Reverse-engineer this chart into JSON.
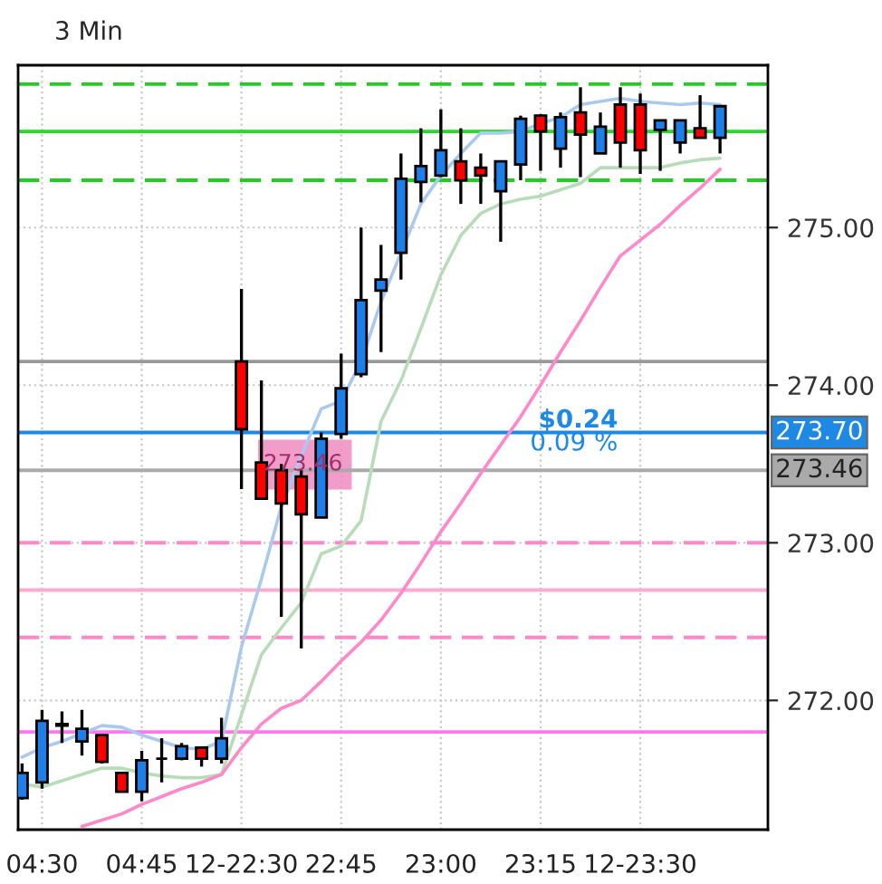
{
  "chart_data": {
    "type": "candlestick",
    "title": "3 Min",
    "categories": [
      null,
      "04:30",
      null,
      null,
      null,
      null,
      "04:45",
      null,
      null,
      null,
      null,
      "12-22:30",
      null,
      null,
      null,
      null,
      "22:45",
      null,
      null,
      null,
      null,
      "23:00",
      null,
      null,
      null,
      null,
      "23:15",
      null,
      null,
      null,
      null,
      "12-23:30",
      null,
      null,
      null,
      null
    ],
    "ohlc": [
      [
        271.38,
        271.6,
        271.37,
        271.54
      ],
      [
        271.48,
        271.94,
        271.44,
        271.87
      ],
      [
        271.85,
        271.93,
        271.73,
        271.84
      ],
      [
        271.74,
        271.94,
        271.65,
        271.82
      ],
      [
        271.78,
        271.78,
        271.6,
        271.61
      ],
      [
        271.54,
        271.54,
        271.42,
        271.42
      ],
      [
        271.42,
        271.68,
        271.36,
        271.62
      ],
      [
        271.63,
        271.76,
        271.48,
        271.63
      ],
      [
        271.63,
        271.73,
        271.62,
        271.71
      ],
      [
        271.7,
        271.7,
        271.58,
        271.63
      ],
      [
        271.63,
        271.89,
        271.6,
        271.76
      ],
      [
        274.15,
        274.61,
        273.34,
        273.72
      ],
      [
        273.51,
        274.03,
        273.28,
        273.28
      ],
      [
        273.46,
        273.5,
        272.53,
        273.25
      ],
      [
        273.42,
        273.46,
        272.33,
        273.18
      ],
      [
        273.16,
        273.7,
        273.16,
        273.66
      ],
      [
        273.69,
        274.2,
        273.66,
        273.98
      ],
      [
        274.07,
        275.0,
        274.05,
        274.54
      ],
      [
        274.6,
        274.89,
        274.21,
        274.67
      ],
      [
        274.84,
        275.47,
        274.67,
        275.31
      ],
      [
        275.29,
        275.63,
        275.16,
        275.39
      ],
      [
        275.33,
        275.75,
        275.32,
        275.49
      ],
      [
        275.42,
        275.63,
        275.15,
        275.3
      ],
      [
        275.38,
        275.47,
        275.15,
        275.33
      ],
      [
        275.23,
        275.42,
        274.91,
        275.42
      ],
      [
        275.4,
        275.71,
        275.3,
        275.69
      ],
      [
        275.71,
        275.72,
        275.36,
        275.61
      ],
      [
        275.5,
        275.73,
        275.38,
        275.7
      ],
      [
        275.73,
        275.89,
        275.32,
        275.59
      ],
      [
        275.47,
        275.73,
        275.47,
        275.64
      ],
      [
        275.78,
        275.89,
        275.38,
        275.54
      ],
      [
        275.78,
        275.85,
        275.34,
        275.49
      ],
      [
        275.62,
        275.68,
        275.36,
        275.68
      ],
      [
        275.54,
        275.68,
        275.47,
        275.68
      ],
      [
        275.63,
        275.84,
        275.57,
        275.57
      ],
      [
        275.57,
        275.77,
        275.47,
        275.77
      ]
    ],
    "colors": [
      "#1e7fe8",
      "#1e7fe8",
      "#ff0000",
      "#1e7fe8",
      "#ff0000",
      "#ff0000",
      "#1e7fe8",
      "#000000",
      "#1e7fe8",
      "#ff0000",
      "#1e7fe8",
      "#ff0000",
      "#ff0000",
      "#ff0000",
      "#ff0000",
      "#1e7fe8",
      "#1e7fe8",
      "#1e7fe8",
      "#1e7fe8",
      "#1e7fe8",
      "#1e7fe8",
      "#1e7fe8",
      "#ff0000",
      "#ff0000",
      "#1e7fe8",
      "#1e7fe8",
      "#ff0000",
      "#1e7fe8",
      "#ff0000",
      "#1e7fe8",
      "#ff0000",
      "#ff0000",
      "#1e7fe8",
      "#1e7fe8",
      "#ff0000",
      "#1e7fe8"
    ],
    "series": [
      {
        "type": "line",
        "color": "#a9c9ee",
        "values": [
          271.64,
          271.7,
          271.74,
          271.79,
          271.84,
          271.83,
          271.78,
          271.74,
          271.7,
          271.69,
          271.74,
          272.34,
          272.77,
          273.23,
          273.55,
          273.85,
          273.9,
          274.15,
          274.53,
          274.84,
          275.15,
          275.33,
          275.47,
          275.6,
          275.6,
          275.61,
          275.66,
          275.7,
          275.78,
          275.8,
          275.82,
          275.8,
          275.79,
          275.78,
          275.79,
          275.78
        ]
      },
      {
        "type": "line",
        "color": "#b8dcb8",
        "values": [
          271.47,
          271.45,
          271.49,
          271.53,
          271.57,
          271.57,
          271.54,
          271.52,
          271.51,
          271.51,
          271.53,
          271.91,
          272.29,
          272.46,
          272.62,
          272.93,
          272.98,
          273.14,
          273.77,
          274.03,
          274.36,
          274.7,
          274.95,
          275.09,
          275.15,
          275.18,
          275.2,
          275.24,
          275.28,
          275.38,
          275.38,
          275.38,
          275.38,
          275.41,
          275.43,
          275.44
        ]
      },
      {
        "type": "line",
        "color": "#ff88c8",
        "values": [
          null,
          null,
          null,
          271.2,
          271.24,
          271.28,
          271.34,
          271.39,
          271.44,
          271.48,
          271.53,
          271.7,
          271.85,
          271.95,
          272.0,
          272.12,
          272.25,
          272.37,
          272.51,
          272.68,
          272.87,
          273.07,
          273.25,
          273.44,
          273.62,
          273.8,
          274.0,
          274.21,
          274.41,
          274.62,
          274.82,
          274.92,
          275.02,
          275.14,
          275.25,
          275.37
        ]
      }
    ],
    "ylim": [
      271.18,
      276.03
    ],
    "yticks": [
      {
        "value": 272,
        "label": "272.00"
      },
      {
        "value": 273,
        "label": "273.00"
      },
      {
        "value": 274,
        "label": "274.00"
      },
      {
        "value": 275,
        "label": "275.00"
      }
    ],
    "ref_lines": [
      {
        "axis": "y",
        "value": 275.91,
        "color": "#22cc22",
        "line_style": "dashed"
      },
      {
        "axis": "y",
        "value": 275.61,
        "color": "#22dd22",
        "line_style": "solid"
      },
      {
        "axis": "y",
        "value": 275.3,
        "color": "#22cc22",
        "line_style": "dashed"
      },
      {
        "axis": "y",
        "value": 274.15,
        "color": "#999999",
        "line_style": "solid"
      },
      {
        "axis": "y",
        "value": 273.7,
        "color": "#1e88e5",
        "line_style": "solid",
        "label": "273.70"
      },
      {
        "axis": "y",
        "value": 273.46,
        "color": "#aaaaaa",
        "line_style": "solid",
        "label": "273.46"
      },
      {
        "axis": "y",
        "value": 273.0,
        "color": "#ff88c8",
        "line_style": "dashed"
      },
      {
        "axis": "y",
        "value": 272.7,
        "color": "#ffaad2",
        "line_style": "solid"
      },
      {
        "axis": "y",
        "value": 272.4,
        "color": "#ff88c8",
        "line_style": "dashed"
      },
      {
        "axis": "y",
        "value": 271.8,
        "color": "#ff77ee",
        "line_style": "solid"
      }
    ],
    "annotations": [
      "$0.24",
      "0.09 %",
      "273.46"
    ],
    "grid": true
  }
}
